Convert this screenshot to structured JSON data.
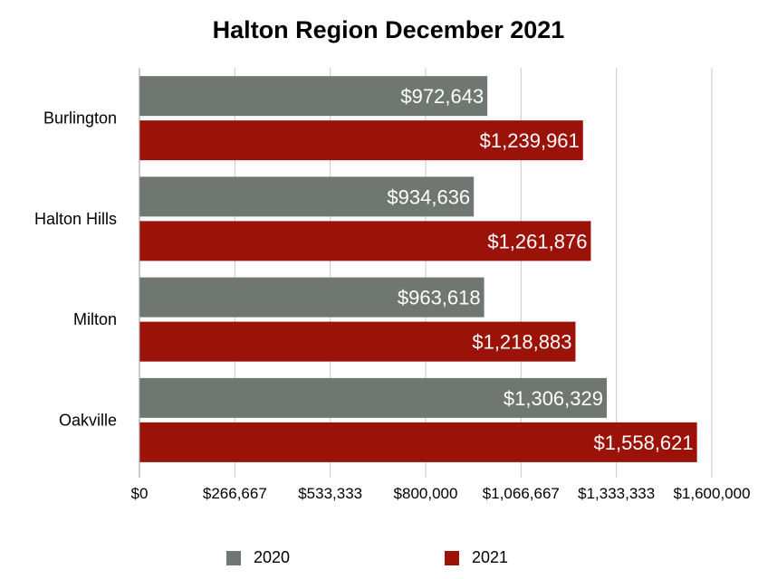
{
  "chart_data": {
    "type": "bar",
    "orientation": "horizontal",
    "title": "Halton Region December 2021",
    "categories": [
      "Burlington",
      "Halton Hills",
      "Milton",
      "Oakville"
    ],
    "series": [
      {
        "name": "2020",
        "color": "#707772",
        "values": [
          972643,
          934636,
          963618,
          1306329
        ],
        "labels": [
          "$972,643",
          "$934,636",
          "$963,618",
          "$1,306,329"
        ]
      },
      {
        "name": "2021",
        "color": "#9b1209",
        "values": [
          1239961,
          1261876,
          1218883,
          1558621
        ],
        "labels": [
          "$1,239,961",
          "$1,261,876",
          "$1,218,883",
          "$1,558,621"
        ]
      }
    ],
    "xlim": [
      0,
      1600000
    ],
    "x_ticks": [
      0,
      266667,
      533333,
      800000,
      1066667,
      1333333,
      1600000
    ],
    "x_tick_labels": [
      "$0",
      "$266,667",
      "$533,333",
      "$800,000",
      "$1,066,667",
      "$1,333,333",
      "$1,600,000"
    ],
    "grid": true,
    "legend_position": "bottom"
  }
}
